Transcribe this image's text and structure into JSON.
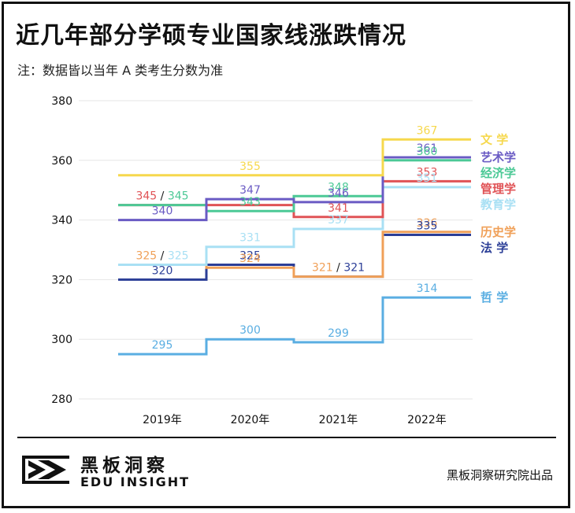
{
  "title": "近几年部分学硕专业国家线涨跌情况",
  "subtitle": "注：数据皆以当年 A 类考生分数为准",
  "brand": {
    "name_cn": "黑板洞察",
    "name_en": "EDU INSIGHT",
    "credit": "黑板洞察研究院出品"
  },
  "colors": {
    "frame": "#111111",
    "grid": "#e6e6e6",
    "axis_text": "#111111"
  },
  "chart_data": {
    "type": "line",
    "step": true,
    "categories": [
      "2019年",
      "2020年",
      "2021年",
      "2022年"
    ],
    "ylim": [
      280,
      380
    ],
    "yticks": [
      280,
      300,
      320,
      340,
      360,
      380
    ],
    "grid": true,
    "legend": "right",
    "series": [
      {
        "name": "文 学",
        "color": "#f6d84d",
        "values": [
          355,
          355,
          355,
          367
        ]
      },
      {
        "name": "艺术学",
        "color": "#6a5bc4",
        "values": [
          340,
          347,
          346,
          361
        ]
      },
      {
        "name": "经济学",
        "color": "#4cc996",
        "values": [
          345,
          343,
          348,
          360
        ]
      },
      {
        "name": "管理学",
        "color": "#e05356",
        "values": [
          345,
          345,
          341,
          353
        ]
      },
      {
        "name": "教育学",
        "color": "#a9e0f4",
        "values": [
          325,
          331,
          337,
          351
        ]
      },
      {
        "name": "历史学",
        "color": "#f0a058",
        "values": [
          325,
          324,
          321,
          336
        ]
      },
      {
        "name": "法 学",
        "color": "#2b3e97",
        "values": [
          320,
          325,
          321,
          335
        ]
      },
      {
        "name": "哲 学",
        "color": "#5aaee2",
        "values": [
          295,
          300,
          299,
          314
        ]
      }
    ],
    "data_labels": [
      {
        "col": 0,
        "y": 345,
        "segments": [
          [
            "345",
            "管理学"
          ],
          [
            " / ",
            null
          ],
          [
            "345",
            "经济学"
          ]
        ]
      },
      {
        "col": 0,
        "y": 340,
        "segments": [
          [
            "340",
            "艺术学"
          ]
        ]
      },
      {
        "col": 0,
        "y": 325,
        "segments": [
          [
            "325",
            "历史学"
          ],
          [
            " / ",
            null
          ],
          [
            "325",
            "教育学"
          ]
        ]
      },
      {
        "col": 0,
        "y": 320,
        "segments": [
          [
            "320",
            "法 学"
          ]
        ]
      },
      {
        "col": 0,
        "y": 295,
        "segments": [
          [
            "295",
            "哲 学"
          ]
        ]
      },
      {
        "col": 1,
        "y": 355,
        "segments": [
          [
            "355",
            "文 学"
          ]
        ]
      },
      {
        "col": 1,
        "y": 347,
        "segments": [
          [
            "347",
            "艺术学"
          ]
        ]
      },
      {
        "col": 1,
        "y": 343,
        "segments": [
          [
            "343",
            "经济学"
          ]
        ]
      },
      {
        "col": 1,
        "y": 331,
        "segments": [
          [
            "331",
            "教育学"
          ]
        ]
      },
      {
        "col": 1,
        "y": 325,
        "segments": [
          [
            "325",
            "法 学"
          ]
        ]
      },
      {
        "col": 1,
        "y": 324,
        "segments": [
          [
            "324",
            "历史学"
          ]
        ]
      },
      {
        "col": 1,
        "y": 300,
        "segments": [
          [
            "300",
            "哲 学"
          ]
        ]
      },
      {
        "col": 2,
        "y": 348,
        "segments": [
          [
            "348",
            "经济学"
          ]
        ]
      },
      {
        "col": 2,
        "y": 346,
        "segments": [
          [
            "346",
            "艺术学"
          ]
        ]
      },
      {
        "col": 2,
        "y": 341,
        "segments": [
          [
            "341",
            "管理学"
          ]
        ]
      },
      {
        "col": 2,
        "y": 337,
        "segments": [
          [
            "337",
            "教育学"
          ]
        ]
      },
      {
        "col": 2,
        "y": 321,
        "segments": [
          [
            "321",
            "历史学"
          ],
          [
            " / ",
            null
          ],
          [
            "321",
            "法 学"
          ]
        ]
      },
      {
        "col": 2,
        "y": 299,
        "segments": [
          [
            "299",
            "哲 学"
          ]
        ]
      },
      {
        "col": 3,
        "y": 367,
        "segments": [
          [
            "367",
            "文 学"
          ]
        ]
      },
      {
        "col": 3,
        "y": 361,
        "segments": [
          [
            "361",
            "艺术学"
          ]
        ]
      },
      {
        "col": 3,
        "y": 360,
        "segments": [
          [
            "360",
            "经济学"
          ]
        ]
      },
      {
        "col": 3,
        "y": 353,
        "segments": [
          [
            "353",
            "管理学"
          ]
        ]
      },
      {
        "col": 3,
        "y": 351,
        "segments": [
          [
            "351",
            "教育学"
          ]
        ]
      },
      {
        "col": 3,
        "y": 336,
        "segments": [
          [
            "336",
            "历史学"
          ]
        ]
      },
      {
        "col": 3,
        "y": 335,
        "segments": [
          [
            "335",
            "法 学"
          ]
        ]
      },
      {
        "col": 3,
        "y": 314,
        "segments": [
          [
            "314",
            "哲 学"
          ]
        ]
      }
    ]
  }
}
